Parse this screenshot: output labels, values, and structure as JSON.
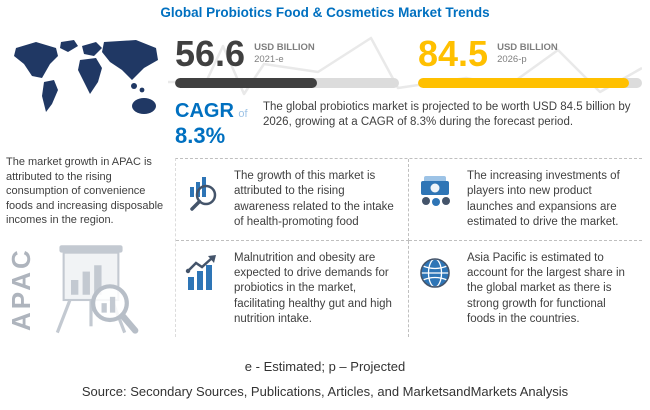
{
  "title": "Global Probiotics Food & Cosmetics Market Trends",
  "left_panel": {
    "text": "The market growth in APAC is attributed to the rising consumption of convenience foods and increasing disposable incomes in the region.",
    "region_label": "APAC"
  },
  "stats": {
    "current": {
      "value": "56.6",
      "unit": "USD BILLION",
      "year": "2021-e"
    },
    "projected": {
      "value": "84.5",
      "unit": "USD BILLION",
      "year": "2026-p"
    }
  },
  "cagr": {
    "label": "CAGR",
    "of_word": "of",
    "value": "8.3%"
  },
  "summary": "The global probiotics market is projected to be worth USD 84.5 billion by 2026, growing at a CAGR of 8.3% during the forecast period.",
  "drivers": [
    {
      "icon": "market-research-icon",
      "text": "The growth of this market is attributed to the rising awareness related to the intake of health-promoting food"
    },
    {
      "icon": "investment-icon",
      "text": "The increasing investments of players into new product launches and expansions are estimated to drive the market."
    },
    {
      "icon": "growth-chart-icon",
      "text": "Malnutrition and obesity are expected to drive demands for probiotics in the market, facilitating healthy gut and high nutrition intake."
    },
    {
      "icon": "globe-icon",
      "text": "Asia Pacific is estimated to account for the largest share in the global market as there is strong growth for functional foods in the countries."
    }
  ],
  "footnote": "e - Estimated; p – Projected",
  "source": "Source: Secondary Sources, Publications, Articles, and MarketsandMarkets Analysis",
  "colors": {
    "accent_blue": "#0070C0",
    "value_dark": "#404040",
    "value_yellow": "#FFC000",
    "map_navy": "#203864",
    "icon_blue": "#2E75B6",
    "icon_dark": "#44546A"
  },
  "chart_data": {
    "type": "bar",
    "categories": [
      "2021-e",
      "2026-p"
    ],
    "values": [
      56.6,
      84.5
    ],
    "unit": "USD Billion",
    "title": "Global Probiotics Food & Cosmetics Market Trends",
    "cagr_percent": 8.3,
    "legend_position": "none",
    "grid": false
  }
}
